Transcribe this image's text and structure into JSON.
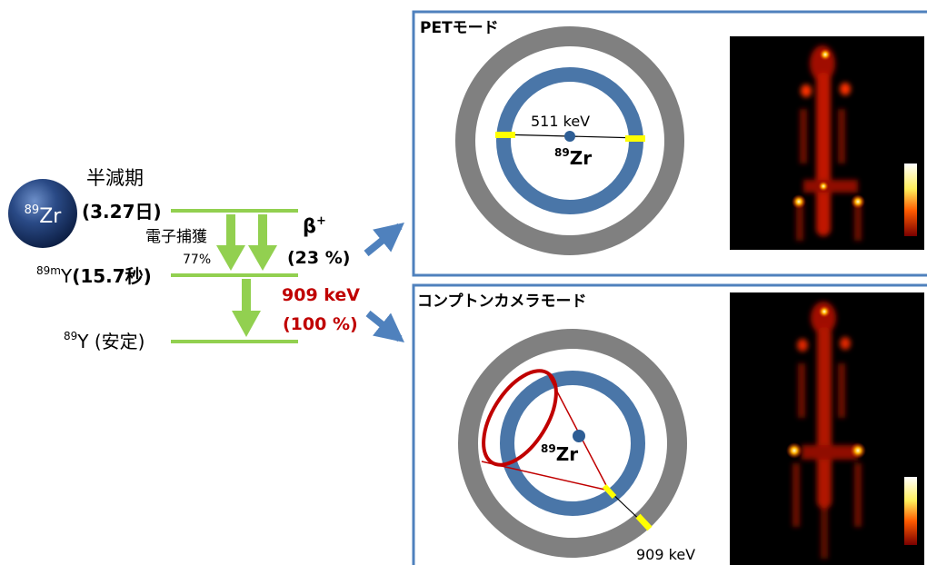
{
  "decay_scheme": {
    "parent_label": "Zr",
    "parent_mass": "89",
    "half_life_label": "半減期",
    "half_life_value": "(3.27日)",
    "capture_label": "電子捕獲",
    "capture_percent": "77%",
    "beta_label": "β",
    "beta_sup": "+",
    "beta_percent": "(23 %)",
    "metastable_mass": "89m",
    "metastable_symbol": "Y",
    "metastable_halflife": "(15.7秒)",
    "gamma_energy": "909 keV",
    "gamma_percent": "(100 %)",
    "stable_mass": "89",
    "stable_label": "Y (安定)",
    "colors": {
      "level": "#92d050",
      "gamma": "#c00000",
      "sphere": "#1f3864"
    }
  },
  "pet_panel": {
    "title": "PETモード",
    "energy_label": "511 keV",
    "source_mass": "89",
    "source_symbol": "Zr"
  },
  "compton_panel": {
    "title": "コンプトンカメラモード",
    "energy_label": "909 keV",
    "source_mass": "89",
    "source_symbol": "Zr"
  },
  "colors": {
    "panel_border": "#4f81bd",
    "ring_outer": "#808080",
    "ring_inner": "#4a76a8",
    "detector_hit": "#ffff00",
    "arrow": "#4f81bd",
    "cone": "#c00000"
  }
}
